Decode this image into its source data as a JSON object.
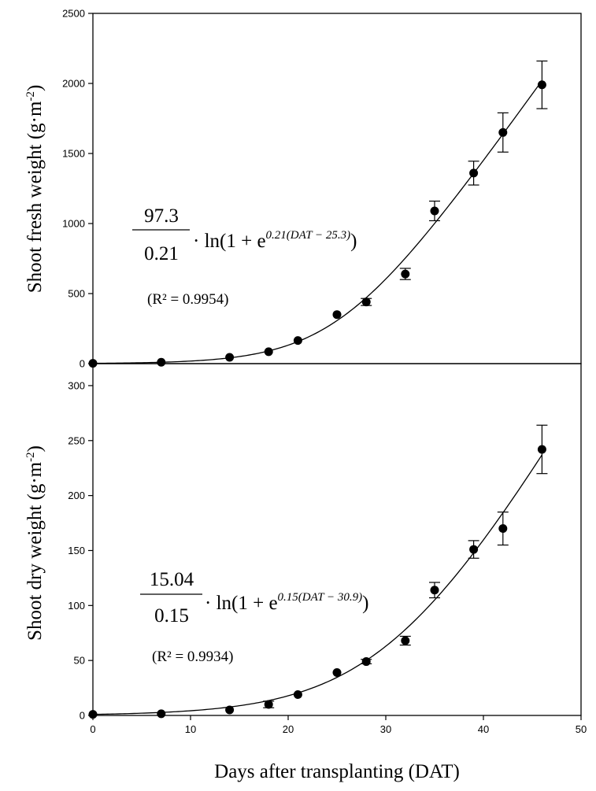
{
  "chart_data": [
    {
      "type": "scatter",
      "ylabel": "Shoot fresh weight (g·m⁻²)",
      "ylabel_main": "Shoot fresh weight (g",
      "ylabel_unit": "m",
      "ylabel_exp": "-2",
      "ylabel_close": ")",
      "xlim": [
        0,
        50
      ],
      "ylim": [
        0,
        2500
      ],
      "yticks": [
        0,
        500,
        1000,
        1500,
        2000,
        2500
      ],
      "yticklabels": [
        "0",
        "500",
        "1000",
        "1500",
        "2000",
        "2500"
      ],
      "x": [
        0,
        7,
        14,
        18,
        21,
        25,
        28,
        32,
        35,
        39,
        42,
        46
      ],
      "y": [
        2,
        10,
        45,
        85,
        165,
        350,
        440,
        640,
        1090,
        1360,
        1650,
        1990
      ],
      "error": [
        0,
        0,
        0,
        0,
        0,
        0,
        25,
        40,
        70,
        85,
        140,
        170
      ],
      "fit": {
        "a": 97.3,
        "b": 0.21,
        "c": 25.3
      },
      "equation": {
        "numerator": "97.3",
        "denominator": "0.21",
        "body": "· ln(1 + e",
        "exponent": "0.21(DAT − 25.3)",
        "close": ")",
        "r2": "(R² = 0.9954)"
      }
    },
    {
      "type": "scatter",
      "ylabel": "Shoot dry weight (g·m⁻²)",
      "ylabel_main": "Shoot dry weight (g",
      "ylabel_unit": "m",
      "ylabel_exp": "-2",
      "ylabel_close": ")",
      "xlabel": "Days after transplanting (DAT)",
      "xlim": [
        0,
        50
      ],
      "ylim": [
        0,
        320
      ],
      "xticks": [
        0,
        10,
        20,
        30,
        40,
        50
      ],
      "xticklabels": [
        "0",
        "10",
        "20",
        "30",
        "40",
        "50"
      ],
      "yticks": [
        0,
        50,
        100,
        150,
        200,
        250,
        300
      ],
      "yticklabels": [
        "0",
        "50",
        "100",
        "150",
        "200",
        "250",
        "300"
      ],
      "x": [
        0,
        7,
        14,
        18,
        21,
        25,
        28,
        32,
        35,
        39,
        42,
        46
      ],
      "y": [
        1,
        1.5,
        5,
        10,
        19,
        39,
        49,
        68,
        114,
        151,
        170,
        242
      ],
      "error": [
        0,
        0,
        0,
        3,
        0,
        0,
        2,
        4,
        7,
        8,
        15,
        22
      ],
      "fit": {
        "a": 15.04,
        "b": 0.15,
        "c": 30.9
      },
      "equation": {
        "numerator": "15.04",
        "denominator": "0.15",
        "body": "· ln(1 + e",
        "exponent": "0.15(DAT − 30.9)",
        "close": ")",
        "r2": "(R² = 0.9934)"
      }
    }
  ]
}
